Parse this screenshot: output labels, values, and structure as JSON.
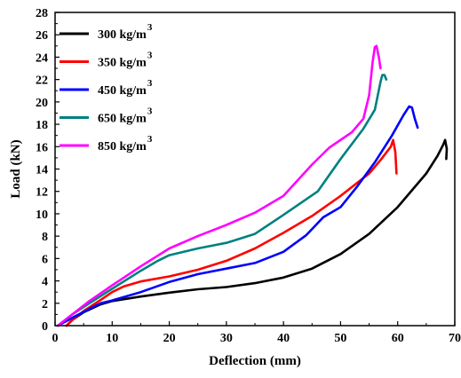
{
  "chart_data": {
    "type": "line",
    "title": "",
    "xlabel": "Deflection (mm)",
    "ylabel": "Load (kN)",
    "xlim": [
      0,
      70
    ],
    "ylim": [
      0,
      28
    ],
    "xticks": [
      0,
      10,
      20,
      30,
      40,
      50,
      60,
      70
    ],
    "yticks": [
      0,
      2,
      4,
      6,
      8,
      10,
      12,
      14,
      16,
      18,
      20,
      22,
      24,
      26,
      28
    ],
    "grid": false,
    "legend_position": "top-left",
    "series": [
      {
        "name": "300 kg/m",
        "superscript": "3",
        "color": "#000000",
        "points": [
          [
            2,
            0
          ],
          [
            3,
            0.5
          ],
          [
            5,
            1.2
          ],
          [
            8,
            1.9
          ],
          [
            10,
            2.2
          ],
          [
            15,
            2.6
          ],
          [
            20,
            2.95
          ],
          [
            25,
            3.25
          ],
          [
            30,
            3.45
          ],
          [
            35,
            3.8
          ],
          [
            40,
            4.3
          ],
          [
            45,
            5.1
          ],
          [
            50,
            6.4
          ],
          [
            55,
            8.2
          ],
          [
            60,
            10.6
          ],
          [
            65,
            13.6
          ],
          [
            67,
            15.2
          ],
          [
            68,
            16.2
          ],
          [
            68.3,
            16.6
          ],
          [
            68.6,
            15.8
          ],
          [
            68.5,
            14.9
          ]
        ]
      },
      {
        "name": "350 kg/m",
        "superscript": "3",
        "color": "#ff0000",
        "points": [
          [
            2,
            0
          ],
          [
            3,
            0.5
          ],
          [
            5,
            1.3
          ],
          [
            8,
            2.3
          ],
          [
            10,
            3.0
          ],
          [
            12,
            3.5
          ],
          [
            15,
            3.95
          ],
          [
            20,
            4.4
          ],
          [
            25,
            5.0
          ],
          [
            30,
            5.8
          ],
          [
            35,
            6.9
          ],
          [
            40,
            8.3
          ],
          [
            45,
            9.8
          ],
          [
            50,
            11.6
          ],
          [
            55,
            13.6
          ],
          [
            57,
            14.8
          ],
          [
            58.8,
            16.0
          ],
          [
            59.2,
            16.6
          ],
          [
            59.6,
            15.5
          ],
          [
            59.8,
            13.6
          ]
        ]
      },
      {
        "name": "450 kg/m",
        "superscript": "3",
        "color": "#0000ff",
        "points": [
          [
            0.5,
            0
          ],
          [
            3,
            0.7
          ],
          [
            6,
            1.5
          ],
          [
            8,
            2.0
          ],
          [
            10,
            2.25
          ],
          [
            15,
            3.0
          ],
          [
            20,
            3.9
          ],
          [
            25,
            4.6
          ],
          [
            30,
            5.1
          ],
          [
            35,
            5.6
          ],
          [
            40,
            6.6
          ],
          [
            44,
            8.1
          ],
          [
            47,
            9.7
          ],
          [
            50,
            10.6
          ],
          [
            53,
            12.5
          ],
          [
            56,
            14.6
          ],
          [
            59,
            17.0
          ],
          [
            61,
            18.8
          ],
          [
            62,
            19.6
          ],
          [
            62.5,
            19.5
          ],
          [
            63,
            18.5
          ],
          [
            63.5,
            17.7
          ]
        ]
      },
      {
        "name": "650 kg/m",
        "superscript": "3",
        "color": "#008080",
        "points": [
          [
            0.5,
            0
          ],
          [
            3,
            1.0
          ],
          [
            6,
            2.0
          ],
          [
            10,
            3.3
          ],
          [
            15,
            4.9
          ],
          [
            18,
            5.8
          ],
          [
            20,
            6.3
          ],
          [
            25,
            6.9
          ],
          [
            30,
            7.4
          ],
          [
            35,
            8.2
          ],
          [
            40,
            9.9
          ],
          [
            46,
            12.0
          ],
          [
            50,
            14.9
          ],
          [
            54,
            17.6
          ],
          [
            56,
            19.3
          ],
          [
            57,
            21.8
          ],
          [
            57.3,
            22.4
          ],
          [
            57.7,
            22.4
          ],
          [
            58,
            22.0
          ]
        ]
      },
      {
        "name": "850 kg/m",
        "superscript": "3",
        "color": "#ff00ff",
        "points": [
          [
            0.5,
            0
          ],
          [
            3,
            1.0
          ],
          [
            6,
            2.2
          ],
          [
            10,
            3.6
          ],
          [
            15,
            5.3
          ],
          [
            20,
            6.9
          ],
          [
            25,
            8.0
          ],
          [
            30,
            9.0
          ],
          [
            35,
            10.1
          ],
          [
            40,
            11.6
          ],
          [
            45,
            14.4
          ],
          [
            48,
            15.9
          ],
          [
            52,
            17.3
          ],
          [
            54,
            18.5
          ],
          [
            55,
            20.6
          ],
          [
            55.6,
            23.5
          ],
          [
            56,
            24.9
          ],
          [
            56.3,
            25.0
          ],
          [
            56.7,
            24.0
          ],
          [
            57,
            23.0
          ]
        ]
      }
    ]
  }
}
